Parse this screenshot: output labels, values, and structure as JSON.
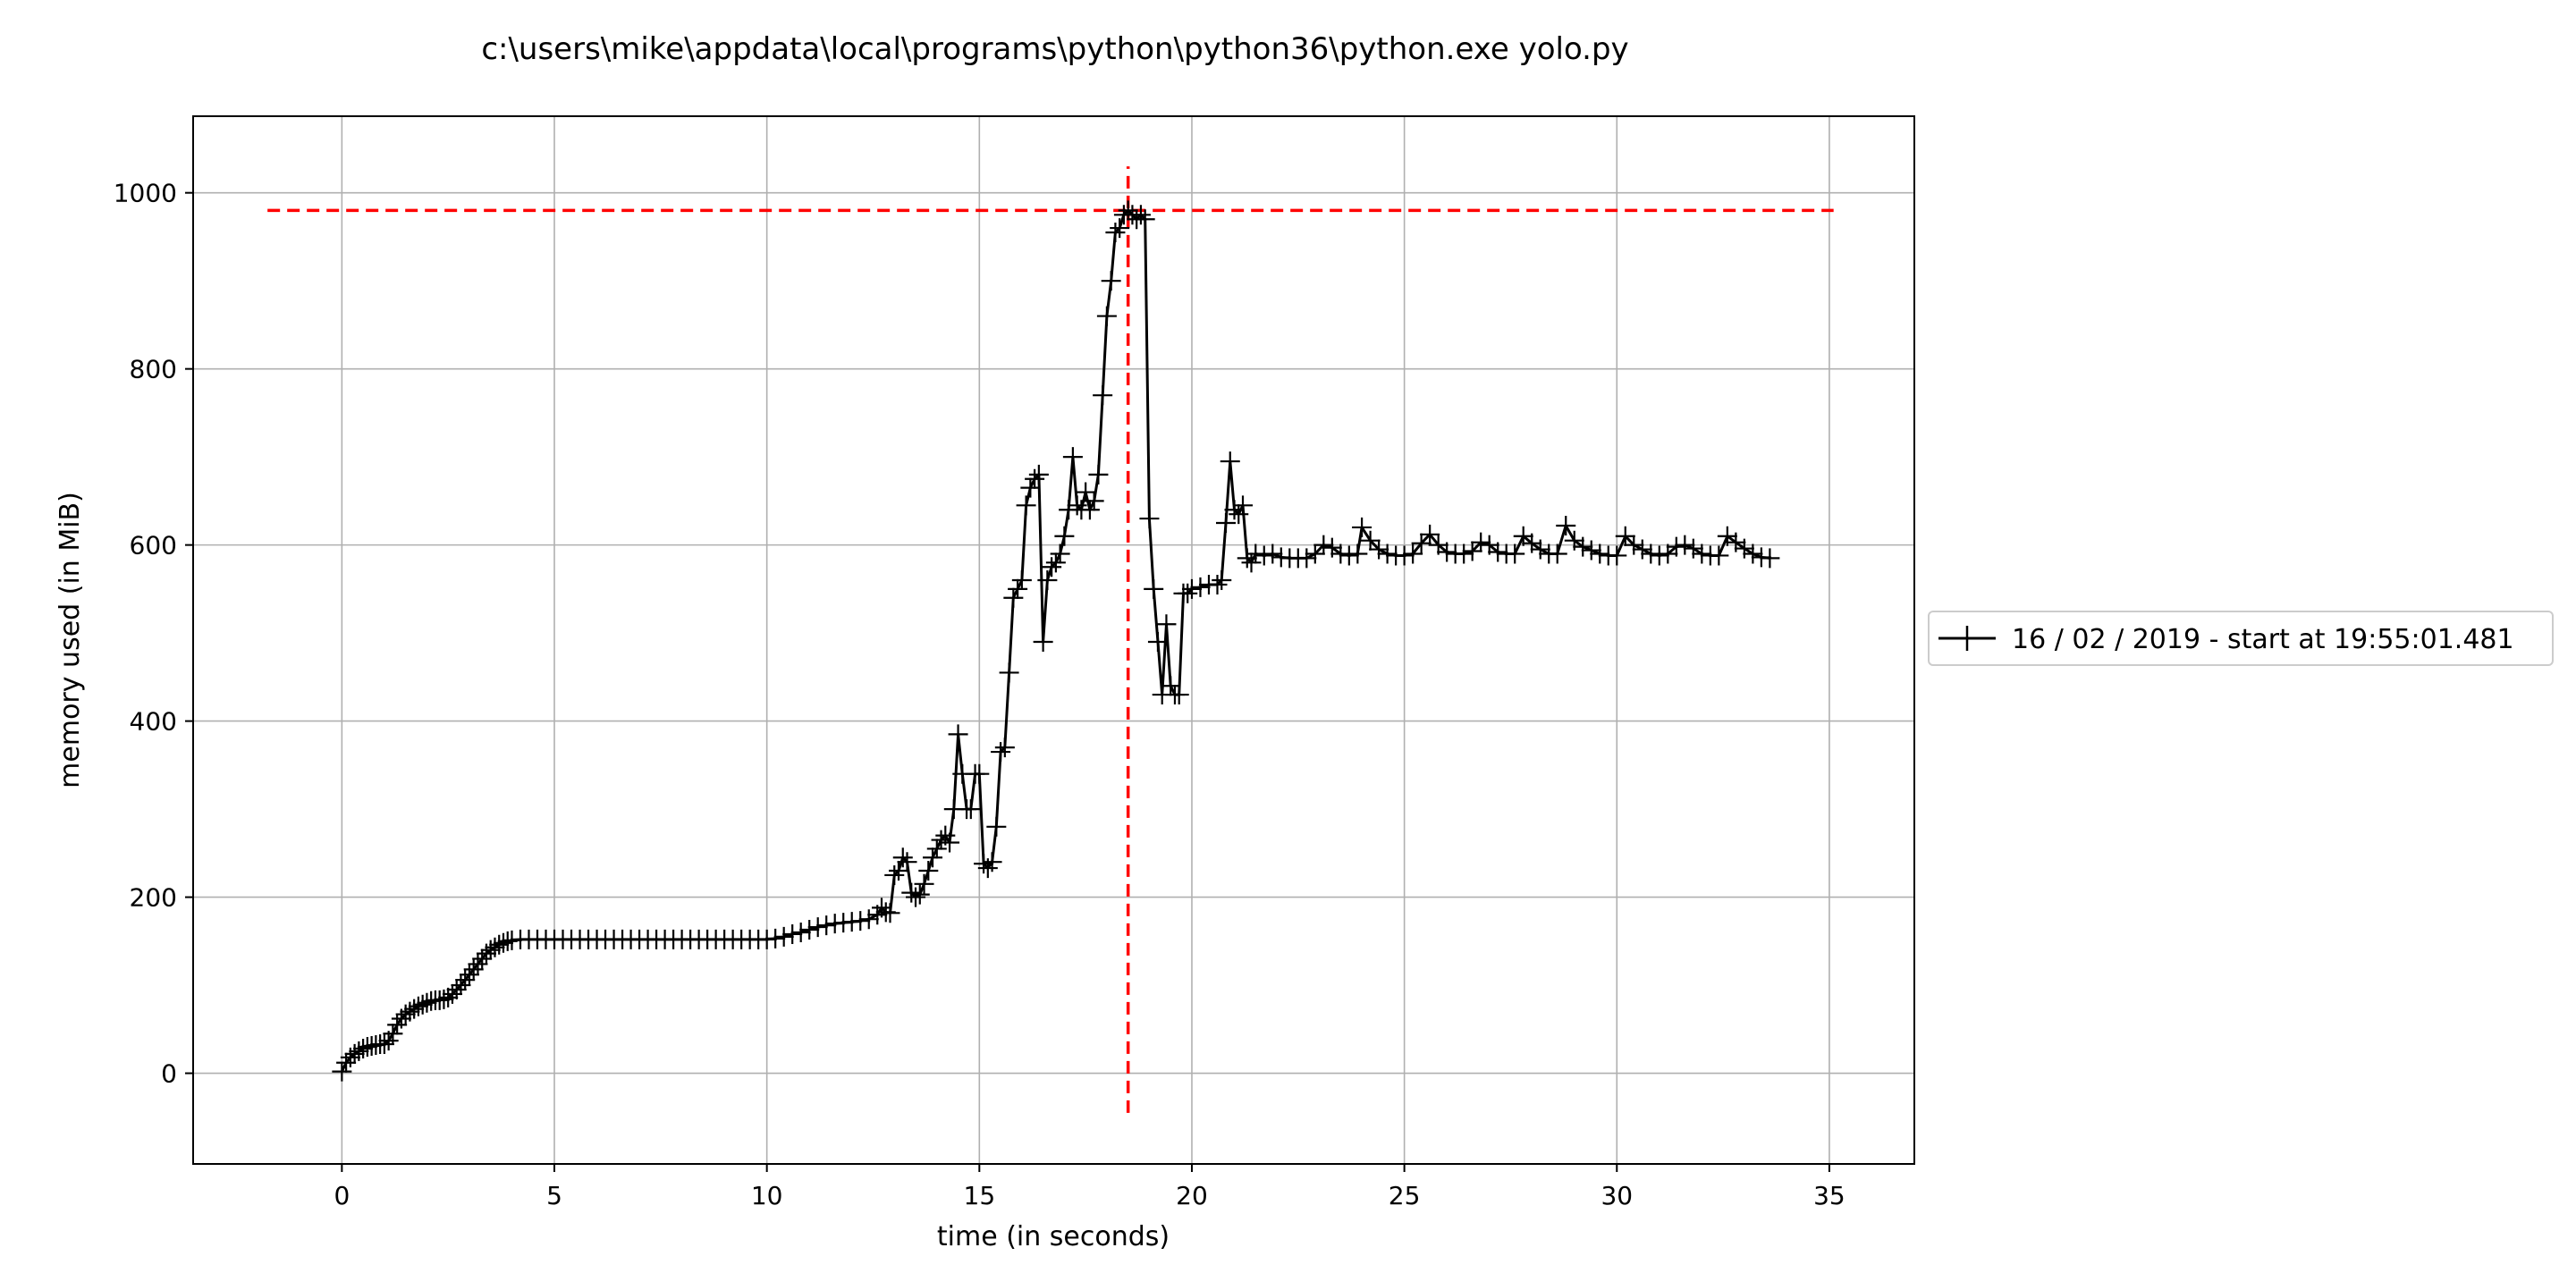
{
  "chart_data": {
    "type": "line",
    "title": "c:\\users\\mike\\appdata\\local\\programs\\python\\python36\\python.exe yolo.py",
    "xlabel": "time (in seconds)",
    "ylabel": "memory used (in MiB)",
    "xlim": [
      -3.5,
      37
    ],
    "ylim": [
      -103,
      1087
    ],
    "xticks": [
      0,
      5,
      10,
      15,
      20,
      25,
      30,
      35
    ],
    "yticks": [
      0,
      200,
      400,
      600,
      800,
      1000
    ],
    "grid": true,
    "legend_position": "right-outside",
    "series": [
      {
        "name": "16 / 02 / 2019 - start at 19:55:01.481",
        "color": "#000000",
        "marker": "+",
        "points": [
          [
            0.0,
            2
          ],
          [
            0.1,
            12
          ],
          [
            0.2,
            18
          ],
          [
            0.3,
            22
          ],
          [
            0.4,
            25
          ],
          [
            0.5,
            28
          ],
          [
            0.6,
            30
          ],
          [
            0.7,
            31
          ],
          [
            0.8,
            32
          ],
          [
            0.9,
            33
          ],
          [
            1.0,
            33
          ],
          [
            1.1,
            37
          ],
          [
            1.2,
            45
          ],
          [
            1.3,
            55
          ],
          [
            1.4,
            62
          ],
          [
            1.5,
            67
          ],
          [
            1.6,
            70
          ],
          [
            1.7,
            73
          ],
          [
            1.8,
            76
          ],
          [
            1.9,
            78
          ],
          [
            2.0,
            80
          ],
          [
            2.1,
            82
          ],
          [
            2.2,
            83
          ],
          [
            2.3,
            83
          ],
          [
            2.4,
            84
          ],
          [
            2.5,
            86
          ],
          [
            2.6,
            90
          ],
          [
            2.7,
            95
          ],
          [
            2.8,
            100
          ],
          [
            2.9,
            106
          ],
          [
            3.0,
            112
          ],
          [
            3.1,
            118
          ],
          [
            3.2,
            124
          ],
          [
            3.3,
            130
          ],
          [
            3.4,
            136
          ],
          [
            3.5,
            140
          ],
          [
            3.6,
            143
          ],
          [
            3.7,
            146
          ],
          [
            3.8,
            148
          ],
          [
            3.9,
            150
          ],
          [
            4.0,
            151
          ],
          [
            4.2,
            152
          ],
          [
            4.4,
            152
          ],
          [
            4.6,
            152
          ],
          [
            4.8,
            152
          ],
          [
            5.0,
            152
          ],
          [
            5.2,
            152
          ],
          [
            5.4,
            152
          ],
          [
            5.6,
            152
          ],
          [
            5.8,
            152
          ],
          [
            6.0,
            152
          ],
          [
            6.2,
            152
          ],
          [
            6.4,
            152
          ],
          [
            6.6,
            152
          ],
          [
            6.8,
            152
          ],
          [
            7.0,
            152
          ],
          [
            7.2,
            152
          ],
          [
            7.4,
            152
          ],
          [
            7.6,
            152
          ],
          [
            7.8,
            152
          ],
          [
            8.0,
            152
          ],
          [
            8.2,
            152
          ],
          [
            8.4,
            152
          ],
          [
            8.6,
            152
          ],
          [
            8.8,
            152
          ],
          [
            9.0,
            152
          ],
          [
            9.2,
            152
          ],
          [
            9.4,
            152
          ],
          [
            9.6,
            152
          ],
          [
            9.8,
            152
          ],
          [
            10.0,
            152
          ],
          [
            10.2,
            153
          ],
          [
            10.4,
            155
          ],
          [
            10.6,
            158
          ],
          [
            10.8,
            160
          ],
          [
            11.0,
            163
          ],
          [
            11.2,
            166
          ],
          [
            11.4,
            168
          ],
          [
            11.6,
            170
          ],
          [
            11.8,
            171
          ],
          [
            12.0,
            172
          ],
          [
            12.2,
            173
          ],
          [
            12.4,
            175
          ],
          [
            12.6,
            180
          ],
          [
            12.7,
            188
          ],
          [
            12.8,
            183
          ],
          [
            12.9,
            182
          ],
          [
            13.0,
            225
          ],
          [
            13.1,
            230
          ],
          [
            13.2,
            245
          ],
          [
            13.3,
            240
          ],
          [
            13.4,
            205
          ],
          [
            13.5,
            200
          ],
          [
            13.6,
            203
          ],
          [
            13.7,
            215
          ],
          [
            13.8,
            230
          ],
          [
            13.9,
            245
          ],
          [
            14.0,
            255
          ],
          [
            14.1,
            265
          ],
          [
            14.2,
            270
          ],
          [
            14.3,
            262
          ],
          [
            14.4,
            300
          ],
          [
            14.5,
            385
          ],
          [
            14.6,
            340
          ],
          [
            14.7,
            300
          ],
          [
            14.8,
            300
          ],
          [
            14.9,
            340
          ],
          [
            15.0,
            340
          ],
          [
            15.1,
            238
          ],
          [
            15.2,
            233
          ],
          [
            15.3,
            240
          ],
          [
            15.4,
            280
          ],
          [
            15.5,
            365
          ],
          [
            15.6,
            370
          ],
          [
            15.7,
            455
          ],
          [
            15.8,
            540
          ],
          [
            15.9,
            550
          ],
          [
            16.0,
            560
          ],
          [
            16.1,
            645
          ],
          [
            16.2,
            665
          ],
          [
            16.3,
            675
          ],
          [
            16.4,
            680
          ],
          [
            16.5,
            490
          ],
          [
            16.6,
            560
          ],
          [
            16.7,
            575
          ],
          [
            16.8,
            580
          ],
          [
            16.9,
            590
          ],
          [
            17.0,
            610
          ],
          [
            17.1,
            640
          ],
          [
            17.2,
            700
          ],
          [
            17.3,
            645
          ],
          [
            17.4,
            640
          ],
          [
            17.5,
            660
          ],
          [
            17.6,
            640
          ],
          [
            17.7,
            650
          ],
          [
            17.8,
            680
          ],
          [
            17.9,
            770
          ],
          [
            18.0,
            860
          ],
          [
            18.1,
            900
          ],
          [
            18.2,
            955
          ],
          [
            18.3,
            960
          ],
          [
            18.4,
            975
          ],
          [
            18.5,
            980
          ],
          [
            18.6,
            975
          ],
          [
            18.7,
            970
          ],
          [
            18.8,
            975
          ],
          [
            18.9,
            970
          ],
          [
            19.0,
            630
          ],
          [
            19.1,
            550
          ],
          [
            19.2,
            490
          ],
          [
            19.3,
            430
          ],
          [
            19.4,
            510
          ],
          [
            19.5,
            440
          ],
          [
            19.6,
            430
          ],
          [
            19.7,
            430
          ],
          [
            19.8,
            545
          ],
          [
            19.9,
            545
          ],
          [
            20.0,
            550
          ],
          [
            20.2,
            552
          ],
          [
            20.4,
            555
          ],
          [
            20.6,
            555
          ],
          [
            20.7,
            560
          ],
          [
            20.8,
            625
          ],
          [
            20.9,
            695
          ],
          [
            21.0,
            640
          ],
          [
            21.1,
            635
          ],
          [
            21.2,
            645
          ],
          [
            21.3,
            585
          ],
          [
            21.4,
            580
          ],
          [
            21.5,
            590
          ],
          [
            21.7,
            588
          ],
          [
            21.9,
            590
          ],
          [
            22.1,
            586
          ],
          [
            22.3,
            585
          ],
          [
            22.5,
            585
          ],
          [
            22.7,
            585
          ],
          [
            22.9,
            590
          ],
          [
            23.1,
            600
          ],
          [
            23.3,
            597
          ],
          [
            23.5,
            590
          ],
          [
            23.7,
            588
          ],
          [
            23.9,
            590
          ],
          [
            24.0,
            620
          ],
          [
            24.2,
            605
          ],
          [
            24.4,
            595
          ],
          [
            24.6,
            590
          ],
          [
            24.8,
            588
          ],
          [
            25.0,
            588
          ],
          [
            25.2,
            590
          ],
          [
            25.4,
            602
          ],
          [
            25.6,
            612
          ],
          [
            25.8,
            600
          ],
          [
            26.0,
            592
          ],
          [
            26.2,
            590
          ],
          [
            26.4,
            590
          ],
          [
            26.6,
            593
          ],
          [
            26.8,
            603
          ],
          [
            27.0,
            600
          ],
          [
            27.2,
            592
          ],
          [
            27.4,
            590
          ],
          [
            27.6,
            590
          ],
          [
            27.8,
            610
          ],
          [
            28.0,
            602
          ],
          [
            28.2,
            595
          ],
          [
            28.4,
            590
          ],
          [
            28.6,
            590
          ],
          [
            28.8,
            622
          ],
          [
            29.0,
            605
          ],
          [
            29.2,
            598
          ],
          [
            29.4,
            594
          ],
          [
            29.6,
            590
          ],
          [
            29.8,
            588
          ],
          [
            30.0,
            588
          ],
          [
            30.2,
            610
          ],
          [
            30.4,
            600
          ],
          [
            30.6,
            595
          ],
          [
            30.8,
            590
          ],
          [
            31.0,
            588
          ],
          [
            31.2,
            590
          ],
          [
            31.4,
            598
          ],
          [
            31.6,
            600
          ],
          [
            31.8,
            596
          ],
          [
            32.0,
            590
          ],
          [
            32.2,
            588
          ],
          [
            32.4,
            588
          ],
          [
            32.6,
            610
          ],
          [
            32.8,
            603
          ],
          [
            33.0,
            596
          ],
          [
            33.2,
            590
          ],
          [
            33.4,
            586
          ],
          [
            33.6,
            585
          ]
        ]
      }
    ],
    "reference_lines": [
      {
        "orientation": "horizontal",
        "value": 980,
        "from": -1.75,
        "to": 35.1,
        "color": "#ff0000",
        "style": "dashed"
      },
      {
        "orientation": "vertical",
        "value": 18.5,
        "from": -45,
        "to": 1030,
        "color": "#ff0000",
        "style": "dashed"
      }
    ]
  }
}
